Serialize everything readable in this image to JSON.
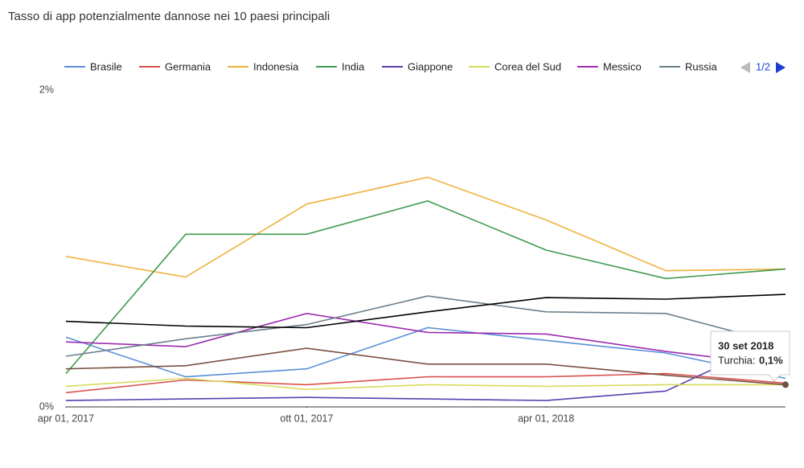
{
  "chart_data": {
    "type": "line",
    "title": "Tasso di app potenzialmente dannose nei 10 paesi principali",
    "x": [
      "2017-04-01",
      "2017-07-01",
      "2017-10-01",
      "2018-01-01",
      "2018-04-01",
      "2018-07-01",
      "2018-09-30"
    ],
    "xlim": [
      "2017-04-01",
      "2018-09-30"
    ],
    "xticks": [
      {
        "value": "2017-04-01",
        "label": "apr 01, 2017"
      },
      {
        "value": "2017-10-01",
        "label": "ott 01, 2017"
      },
      {
        "value": "2018-04-01",
        "label": "apr 01, 2018"
      }
    ],
    "ylim": [
      0,
      2
    ],
    "yticks": [
      {
        "value": 0,
        "label": "0%"
      },
      {
        "value": 2,
        "label": "2%"
      }
    ],
    "legend_position": "top",
    "legend_page": "1/2",
    "series": [
      {
        "name": "Brasile",
        "color": "#5a8fd8",
        "values": [
          0.44,
          0.19,
          0.24,
          0.5,
          0.42,
          0.34,
          0.18
        ]
      },
      {
        "name": "Germania",
        "color": "#d9534f",
        "values": [
          0.09,
          0.17,
          0.14,
          0.19,
          0.19,
          0.21,
          0.15
        ]
      },
      {
        "name": "Indonesia",
        "color": "#f0b13e",
        "values": [
          0.95,
          0.82,
          1.28,
          1.45,
          1.18,
          0.86,
          0.87
        ]
      },
      {
        "name": "India",
        "color": "#3f9a4f",
        "values": [
          0.21,
          1.09,
          1.09,
          1.3,
          0.99,
          0.81,
          0.87
        ]
      },
      {
        "name": "Giappone",
        "color": "#5b3fb0",
        "values": [
          0.04,
          0.05,
          0.06,
          0.05,
          0.04,
          0.1,
          0.45
        ]
      },
      {
        "name": "Corea del Sud",
        "color": "#d6dc5a",
        "values": [
          0.13,
          0.18,
          0.11,
          0.14,
          0.13,
          0.14,
          0.14
        ]
      },
      {
        "name": "Messico",
        "color": "#9c2bb0",
        "values": [
          0.41,
          0.38,
          0.59,
          0.47,
          0.46,
          0.35,
          0.26
        ]
      },
      {
        "name": "Russia",
        "color": "#6b7f8c",
        "values": [
          0.32,
          0.43,
          0.52,
          0.7,
          0.6,
          0.59,
          0.39
        ]
      },
      {
        "name": "Turchia",
        "color": "#7a5040",
        "values": [
          0.24,
          0.26,
          0.37,
          0.27,
          0.27,
          0.2,
          0.14
        ]
      },
      {
        "color": "#000000",
        "values": [
          0.54,
          0.51,
          0.5,
          0.6,
          0.69,
          0.68,
          0.71
        ]
      }
    ],
    "tooltip": {
      "title": "30 set 2018",
      "label": "Turchia:",
      "value": "0,1%"
    }
  }
}
